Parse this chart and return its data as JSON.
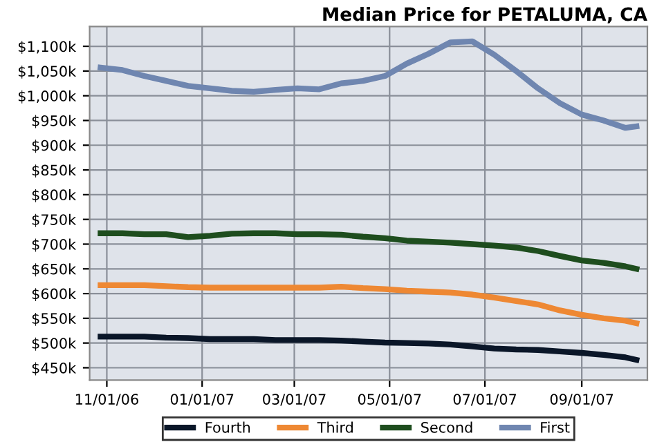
{
  "chart_data": {
    "type": "line",
    "title": "Median Price for PETALUMA, CA",
    "x": [
      "2006-10-28",
      "2006-11-11",
      "2006-11-25",
      "2006-12-09",
      "2006-12-23",
      "2007-01-06",
      "2007-01-20",
      "2007-02-03",
      "2007-02-17",
      "2007-03-03",
      "2007-03-17",
      "2007-03-31",
      "2007-04-14",
      "2007-04-28",
      "2007-05-12",
      "2007-05-26",
      "2007-06-09",
      "2007-06-23",
      "2007-07-07",
      "2007-07-21",
      "2007-08-04",
      "2007-08-18",
      "2007-09-01",
      "2007-09-15",
      "2007-09-29",
      "2007-10-06"
    ],
    "series": [
      {
        "name": "Fourth",
        "color": "#0a1628",
        "values": [
          513,
          513,
          513,
          511,
          510,
          508,
          508,
          508,
          506,
          506,
          506,
          505,
          503,
          501,
          500,
          499,
          497,
          493,
          489,
          487,
          486,
          483,
          480,
          476,
          471,
          466
        ]
      },
      {
        "name": "Third",
        "color": "#ee8833",
        "values": [
          617,
          617,
          617,
          615,
          613,
          612,
          612,
          612,
          612,
          612,
          612,
          614,
          611,
          609,
          606,
          604,
          602,
          598,
          592,
          585,
          578,
          566,
          557,
          550,
          545,
          540
        ]
      },
      {
        "name": "Second",
        "color": "#1e4d1e",
        "values": [
          722,
          722,
          720,
          720,
          714,
          717,
          721,
          722,
          722,
          720,
          720,
          719,
          715,
          712,
          707,
          705,
          703,
          700,
          697,
          693,
          686,
          676,
          667,
          662,
          655,
          650
        ]
      },
      {
        "name": "First",
        "color": "#6f86b0",
        "values": [
          1057,
          1052,
          1040,
          1030,
          1020,
          1015,
          1010,
          1008,
          1012,
          1015,
          1013,
          1025,
          1030,
          1040,
          1065,
          1085,
          1108,
          1110,
          1083,
          1050,
          1015,
          985,
          962,
          950,
          935,
          938
        ]
      }
    ],
    "xlim": [
      "2006-10-21",
      "2007-10-13"
    ],
    "xticks": [
      {
        "value": "2006-11-01",
        "label": "11/01/06"
      },
      {
        "value": "2007-01-01",
        "label": "01/01/07"
      },
      {
        "value": "2007-03-01",
        "label": "03/01/07"
      },
      {
        "value": "2007-05-01",
        "label": "05/01/07"
      },
      {
        "value": "2007-07-01",
        "label": "07/01/07"
      },
      {
        "value": "2007-09-01",
        "label": "09/01/07"
      }
    ],
    "ylim": [
      425,
      1140
    ],
    "yticks": [
      {
        "value": 450,
        "label": "$450k"
      },
      {
        "value": 500,
        "label": "$500k"
      },
      {
        "value": 550,
        "label": "$550k"
      },
      {
        "value": 600,
        "label": "$600k"
      },
      {
        "value": 650,
        "label": "$650k"
      },
      {
        "value": 700,
        "label": "$700k"
      },
      {
        "value": 750,
        "label": "$750k"
      },
      {
        "value": 800,
        "label": "$800k"
      },
      {
        "value": 850,
        "label": "$850k"
      },
      {
        "value": 900,
        "label": "$900k"
      },
      {
        "value": 950,
        "label": "$950k"
      },
      {
        "value": 1000,
        "label": "$1,000k"
      },
      {
        "value": 1050,
        "label": "$1,050k"
      },
      {
        "value": 1100,
        "label": "$1,100k"
      }
    ],
    "grid": true,
    "legend": "bottom",
    "marker": "none",
    "line_style": "solid"
  }
}
